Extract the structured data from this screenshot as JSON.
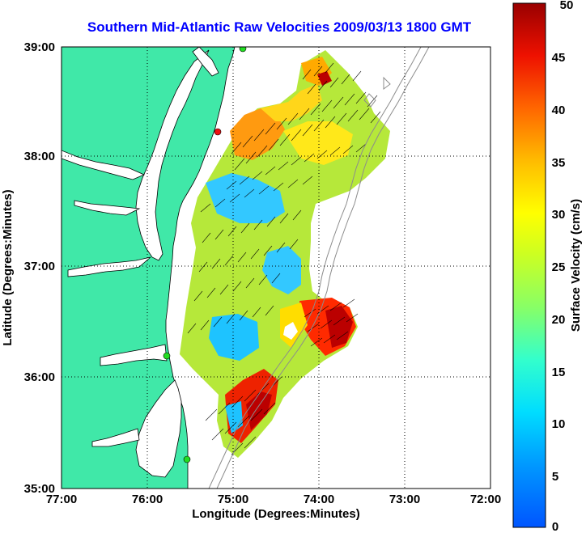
{
  "title": "Southern Mid-Atlantic Raw Velocities 2009/03/13 1800 GMT",
  "x_axis": {
    "label": "Longitude (Degrees:Minutes)",
    "ticks": [
      "77:00",
      "76:00",
      "75:00",
      "74:00",
      "73:00",
      "72:00"
    ],
    "range": [
      -77,
      -72
    ]
  },
  "y_axis": {
    "label": "Latitude (Degrees:Minutes)",
    "ticks": [
      "39:00",
      "38:00",
      "37:00",
      "36:00",
      "35:00"
    ],
    "range": [
      35,
      39
    ]
  },
  "colorbar": {
    "label": "Surface Velocity (cm/s)",
    "ticks": [
      "50",
      "45",
      "40",
      "35",
      "30",
      "25",
      "20",
      "15",
      "10",
      "5",
      "0"
    ],
    "range": [
      0,
      50
    ]
  },
  "grid": "dotted",
  "colors": {
    "title": "#0000ff",
    "land": "#40e8a8",
    "station_green": "#22dd22",
    "station_red": "#ee1111"
  }
}
